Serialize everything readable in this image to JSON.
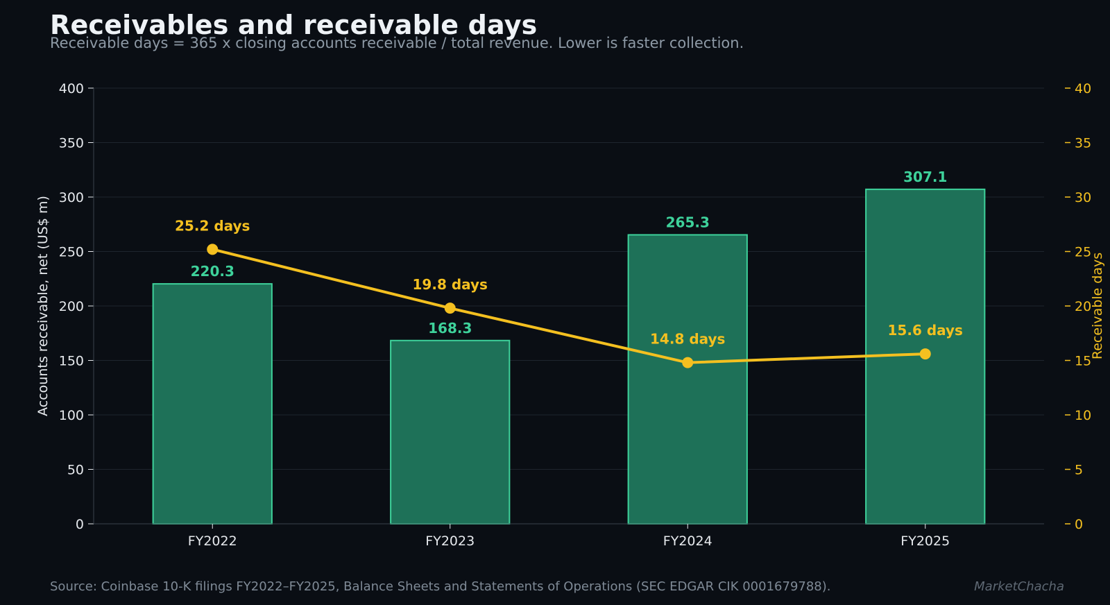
{
  "title": "Receivables and receivable days",
  "subtitle": "Receivable days = 365 x closing accounts receivable / total revenue. Lower is faster collection.",
  "source": "Source: Coinbase 10-K filings FY2022–FY2025, Balance Sheets and Statements of Operations (SEC EDGAR CIK 0001679788).",
  "brand": "MarketChacha",
  "colors": {
    "background": "#0a0e14",
    "bar_fill": "#1e7158",
    "bar_edge": "#3ed29b",
    "line": "#f4c020",
    "grid": "#1f252e",
    "text": "#e6e9ed"
  },
  "chart_data": {
    "type": "bar",
    "categories": [
      "FY2022",
      "FY2023",
      "FY2024",
      "FY2025"
    ],
    "series": [
      {
        "name": "Accounts receivable, net (US$ m)",
        "type": "bar",
        "axis": "left",
        "values": [
          220.3,
          168.3,
          265.3,
          307.1
        ],
        "labels": [
          "220.3",
          "168.3",
          "265.3",
          "307.1"
        ]
      },
      {
        "name": "Receivable days",
        "type": "line",
        "axis": "right",
        "values": [
          25.2,
          19.8,
          14.8,
          15.6
        ],
        "labels": [
          "25.2 days",
          "19.8 days",
          "14.8 days",
          "15.6 days"
        ]
      }
    ],
    "ylabel": "Accounts receivable, net (US$ m)",
    "ylim": [
      0,
      400
    ],
    "yticks": [
      "0",
      "50",
      "100",
      "150",
      "200",
      "250",
      "300",
      "350",
      "400"
    ],
    "y2label": "Receivable days",
    "y2lim": [
      0,
      40
    ],
    "y2ticks": [
      "0",
      "5",
      "10",
      "15",
      "20",
      "25",
      "30",
      "35",
      "40"
    ],
    "grid": true,
    "legend": "none"
  }
}
